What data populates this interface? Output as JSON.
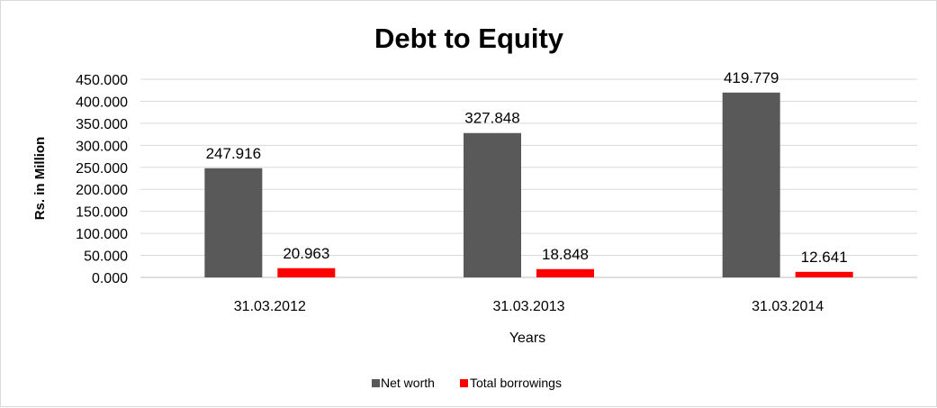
{
  "chart_data": {
    "type": "bar",
    "title": "Debt to Equity",
    "xlabel": "Years",
    "ylabel": "Rs. in Million",
    "categories": [
      "31.03.2012",
      "31.03.2013",
      "31.03.2014"
    ],
    "series": [
      {
        "name": "Net worth",
        "values": [
          247.916,
          327.848,
          419.779
        ],
        "value_labels": [
          "247.916",
          "327.848",
          "419.779"
        ],
        "color": "#595959"
      },
      {
        "name": "Total borrowings",
        "values": [
          20.963,
          18.848,
          12.641
        ],
        "value_labels": [
          "20.963",
          "18.848",
          "12.641"
        ],
        "color": "#ff0000"
      }
    ],
    "ylim": [
      0,
      450
    ],
    "yticks": [
      "0.000",
      "50.000",
      "100.000",
      "150.000",
      "200.000",
      "250.000",
      "300.000",
      "350.000",
      "400.000",
      "450.000"
    ],
    "grid": true,
    "legend_position": "bottom"
  }
}
